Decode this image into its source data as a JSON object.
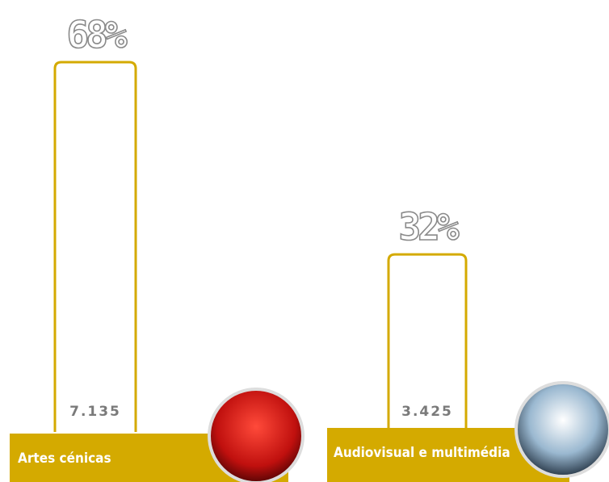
{
  "chart_data": {
    "type": "bar",
    "categories": [
      "Artes cénicas",
      "Audiovisual e multimédia"
    ],
    "values": [
      7135,
      3425
    ],
    "value_labels": [
      "7.135",
      "3.425"
    ],
    "shares": [
      68,
      32
    ],
    "share_labels": [
      "68%",
      "32%"
    ],
    "color": "#d4aa00"
  }
}
